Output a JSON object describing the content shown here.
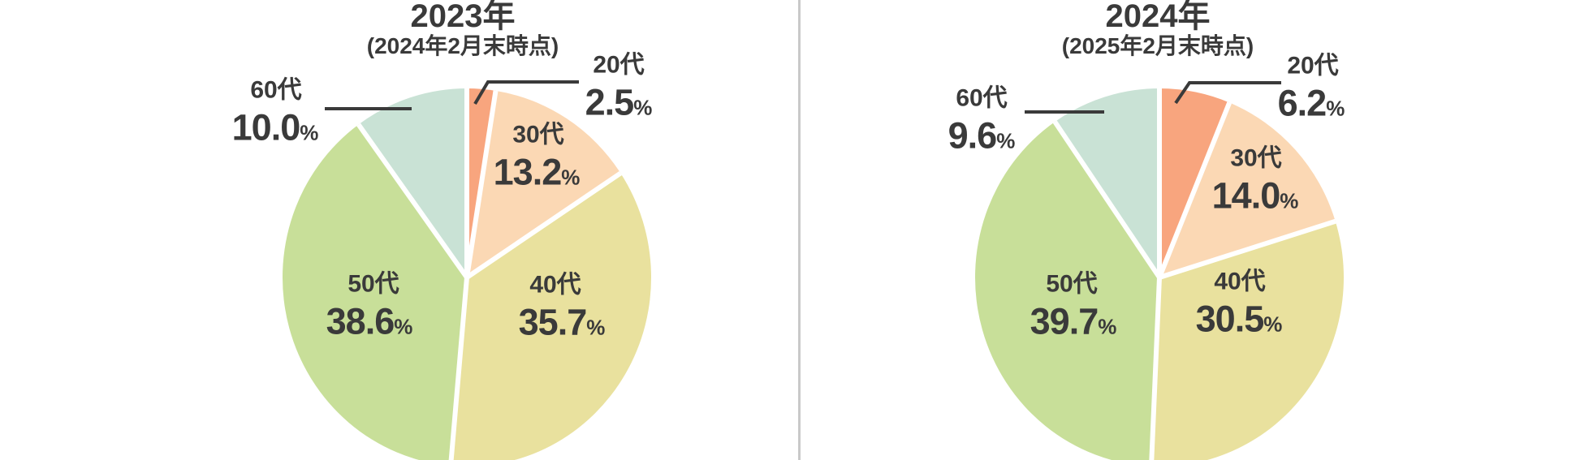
{
  "page": {
    "background": "#ffffff",
    "divider_color": "#c9c9c9",
    "text_color": "#3a3a3a",
    "leader_line_color": "#3a3a3a",
    "slice_gap_color": "#ffffff"
  },
  "chart_data": [
    {
      "type": "pie",
      "title": "2023年",
      "subtitle": "(2024年2月末時点)",
      "unit": "%",
      "direction": "clockwise",
      "start_angle_deg": 0,
      "categories": [
        "20代",
        "30代",
        "40代",
        "50代",
        "60代"
      ],
      "values": [
        2.5,
        13.2,
        35.7,
        38.6,
        10.0
      ],
      "value_labels": [
        "2.5",
        "13.2",
        "35.7",
        "38.6",
        "10.0"
      ],
      "colors": [
        "#f8a57e",
        "#fbd8b4",
        "#e9e19e",
        "#c8df99",
        "#c9e2d5"
      ],
      "outside_labels": [
        "20代",
        "60代"
      ],
      "slice_ids": [
        "age-20s",
        "age-30s",
        "age-40s",
        "age-50s",
        "age-60s"
      ]
    },
    {
      "type": "pie",
      "title": "2024年",
      "subtitle": "(2025年2月末時点)",
      "unit": "%",
      "direction": "clockwise",
      "start_angle_deg": 0,
      "categories": [
        "20代",
        "30代",
        "40代",
        "50代",
        "60代"
      ],
      "values": [
        6.2,
        14.0,
        30.5,
        39.7,
        9.6
      ],
      "value_labels": [
        "6.2",
        "14.0",
        "30.5",
        "39.7",
        "9.6"
      ],
      "colors": [
        "#f8a57e",
        "#fbd8b4",
        "#e9e19e",
        "#c8df99",
        "#c9e2d5"
      ],
      "outside_labels": [
        "20代",
        "60代"
      ],
      "slice_ids": [
        "age-20s",
        "age-30s",
        "age-40s",
        "age-50s",
        "age-60s"
      ]
    }
  ]
}
